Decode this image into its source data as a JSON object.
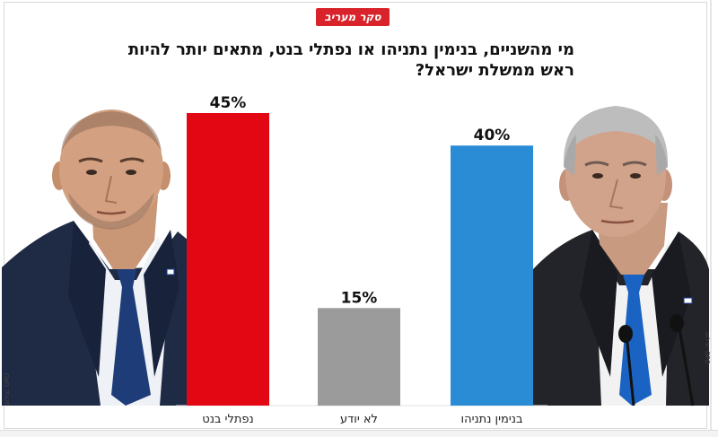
{
  "badge": {
    "text": "סקר מעריב"
  },
  "title": "מי מהשניים, בנימין נתניהו או נפתלי בנט, מתאים יותר להיות ראש ממשלת ישראל?",
  "chart_data": {
    "type": "bar",
    "categories": [
      "נפתלי בנט",
      "לא יודע",
      "בנימין נתניהו"
    ],
    "values": [
      45,
      15,
      40
    ],
    "value_labels": [
      "45%",
      "15%",
      "40%"
    ],
    "colors": [
      "#e30613",
      "#9b9b9b",
      "#2b8cd6"
    ],
    "title": "מי מהשניים, בנימין נתניהו או נפתלי בנט, מתאים יותר להיות ראש ממשלת ישראל?",
    "xlabel": "",
    "ylabel": "",
    "ylim": [
      0,
      45
    ],
    "unit": "%",
    "grid": false,
    "legend": "none"
  },
  "credits": {
    "left": "צילום: GPO",
    "right": "צילום: GPO"
  }
}
